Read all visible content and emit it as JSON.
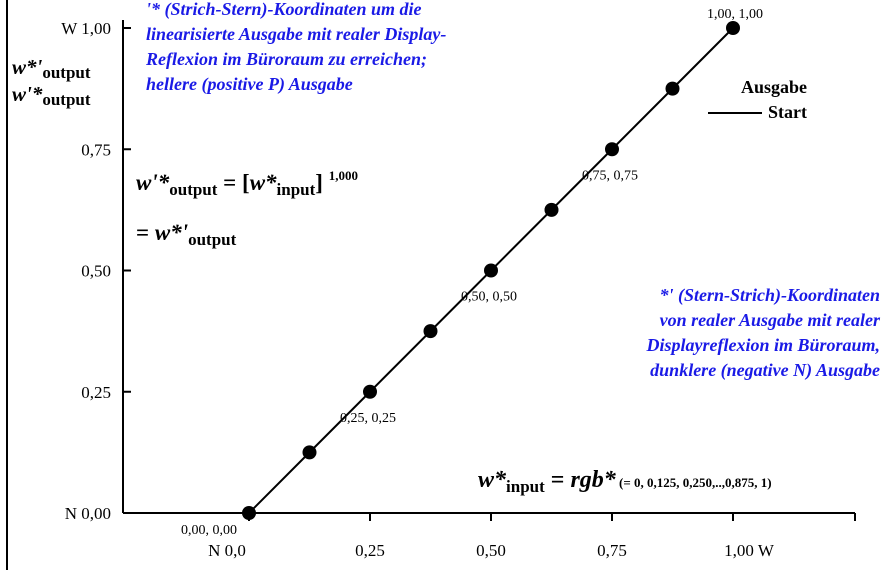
{
  "annotations": {
    "top": [
      "'* (Strich-Stern)-Koordinaten um die",
      "linearisierte Ausgabe mit realer Display-",
      "Reflexion im Büroraum zu erreichen;",
      "hellere (positive P) Ausgabe"
    ],
    "right": [
      "*' (Stern-Strich)-Koordinaten",
      "von realer Ausgabe mit realer",
      "Displayreflexion im Büroraum,",
      "dunklere (negative N) Ausgabe"
    ]
  },
  "y_axis_label": {
    "line1_main": "w*'",
    "line1_sub": "output",
    "line2_main": "w'*",
    "line2_sub": "output"
  },
  "equations": {
    "eq1_lhs": "w'*",
    "eq1_lhs_sub": "output",
    "eq1_eq": " = [",
    "eq1_var": "w*",
    "eq1_var_sub": "input",
    "eq1_close": "]",
    "eq1_exp": "1,000",
    "eq2_prefix": "= ",
    "eq2_var": "w*'",
    "eq2_sub": "output",
    "eq3_var": "w*",
    "eq3_sub": "input",
    "eq3_mid": " = ",
    "eq3_rgb": "rgb*",
    "eq3_detail": " (= 0, 0,125, 0,250,..,0,875, 1)"
  },
  "legend": {
    "title": "Ausgabe",
    "items": [
      {
        "label": "Start"
      }
    ]
  },
  "chart_data": {
    "type": "line",
    "xlim": [
      0,
      1
    ],
    "ylim": [
      0,
      1
    ],
    "x_ticks": [
      {
        "value": 0,
        "label": "N  0,0"
      },
      {
        "value": 0.25,
        "label": "0,25"
      },
      {
        "value": 0.5,
        "label": "0,50"
      },
      {
        "value": 0.75,
        "label": "0,75"
      },
      {
        "value": 1,
        "label": "1,00  W"
      }
    ],
    "y_ticks": [
      {
        "value": 0,
        "label": "N 0,00"
      },
      {
        "value": 0.25,
        "label": "0,25"
      },
      {
        "value": 0.5,
        "label": "0,50"
      },
      {
        "value": 0.75,
        "label": "0,75"
      },
      {
        "value": 1,
        "label": "W 1,00"
      }
    ],
    "grid": false,
    "legend_position": "top-right",
    "series": [
      {
        "name": "Start",
        "color": "#000000",
        "x": [
          0,
          0.125,
          0.25,
          0.375,
          0.5,
          0.625,
          0.75,
          0.875,
          1
        ],
        "y": [
          0,
          0.125,
          0.25,
          0.375,
          0.5,
          0.625,
          0.75,
          0.875,
          1
        ]
      }
    ],
    "point_labels": [
      {
        "x": 0,
        "y": 0,
        "text": "0,00, 0,00"
      },
      {
        "x": 0.25,
        "y": 0.25,
        "text": "0,25, 0,25"
      },
      {
        "x": 0.5,
        "y": 0.5,
        "text": "0,50, 0,50"
      },
      {
        "x": 0.75,
        "y": 0.75,
        "text": "0,75, 0,75"
      },
      {
        "x": 1,
        "y": 1,
        "text": "1,00, 1,00"
      }
    ]
  }
}
